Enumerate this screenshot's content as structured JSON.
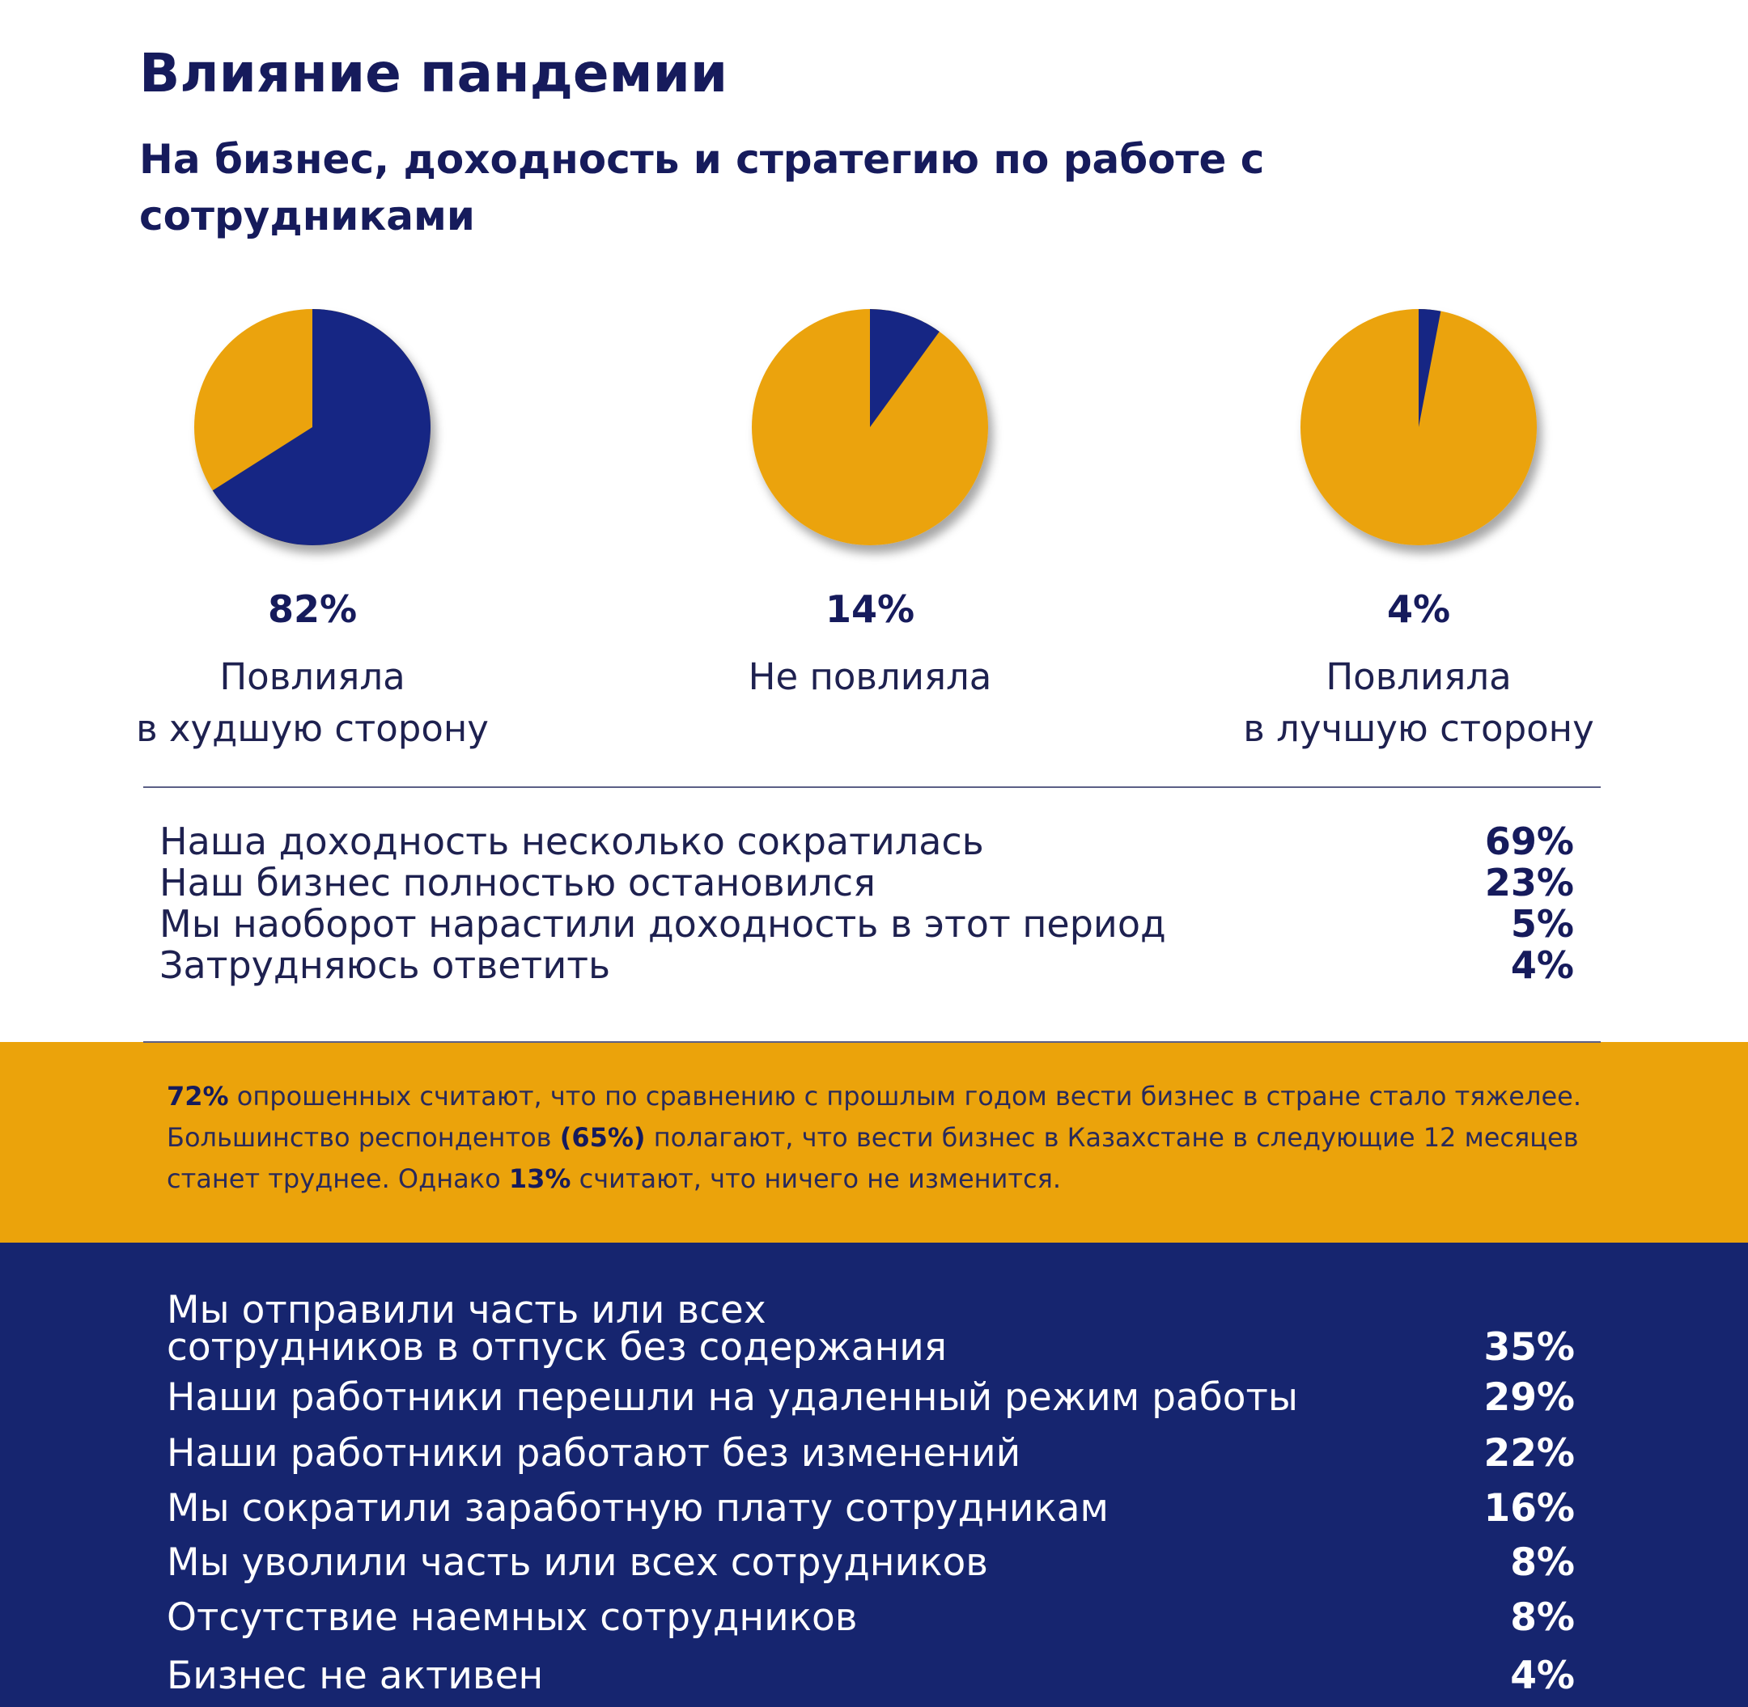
{
  "header": {
    "title": "Влияние пандемии",
    "subtitle": "На бизнес, доходность и стратегию по работе с сотрудниками"
  },
  "colors": {
    "orange": "#eba30b",
    "blue": "#132784",
    "navy_text": "#161b5c",
    "band_blue": "#16256f"
  },
  "pies": [
    {
      "percent": "82%",
      "label1": "Повлияла",
      "label2": "в худшую сторону",
      "blue_share": 0.66
    },
    {
      "percent": "14%",
      "label1": "Не повлияла",
      "label2": "",
      "blue_share": 0.1
    },
    {
      "percent": "4%",
      "label1": "Повлияла",
      "label2": "в лучшую сторону",
      "blue_share": 0.03
    }
  ],
  "profit_list": [
    {
      "label": "Наша доходность несколько сократилась",
      "value": "69%"
    },
    {
      "label": "Наш бизнес полностью остановился",
      "value": "23%"
    },
    {
      "label": "Мы наоборот нарастили доходность в этот период",
      "value": "5%"
    },
    {
      "label": "Затрудняюсь ответить",
      "value": "4%"
    }
  ],
  "callout": {
    "p1": "72%",
    "t1": " опрошенных считают, что по сравнению с прошлым годом вести бизнес в стране стало тяжелее. Большинство респондентов ",
    "p2": "(65%)",
    "t2": " полагают, что вести бизнес в Казахстане в следующие 12 месяцев станет труднее. Однако ",
    "p3": "13%",
    "t3": " считают, что ничего не изменится."
  },
  "staff_list": [
    {
      "label": "Мы отправили часть или всех",
      "label2": "сотрудников в отпуск без содержания",
      "value": "35%"
    },
    {
      "label": "Наши работники перешли на удаленный режим работы",
      "value": "29%"
    },
    {
      "label": "Наши работники работают без изменений",
      "value": "22%"
    },
    {
      "label": "Мы сократили заработную плату сотрудникам",
      "value": "16%"
    },
    {
      "label": "Мы уволили часть или всех сотрудников",
      "value": "8%"
    },
    {
      "label": "Отсутствие наемных сотрудников",
      "value": "8%"
    },
    {
      "label": "Бизнес не активен",
      "value": "4%"
    }
  ]
}
